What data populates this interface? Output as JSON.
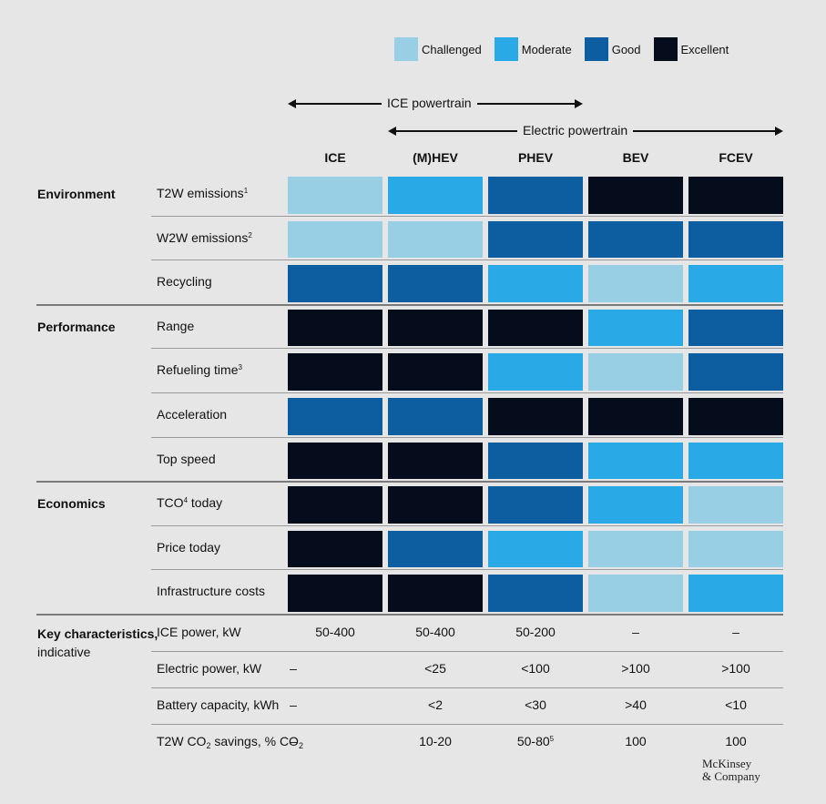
{
  "colors": {
    "Challenged": "#99cfe4",
    "Moderate": "#29a9e5",
    "Good": "#0c5ea1",
    "Excellent": "#050d1c"
  },
  "legend": [
    {
      "label": "Challenged",
      "color": "#99cfe4"
    },
    {
      "label": "Moderate",
      "color": "#29a9e5"
    },
    {
      "label": "Good",
      "color": "#0c5ea1"
    },
    {
      "label": "Excellent",
      "color": "#050d1c"
    }
  ],
  "powertrain_groups": {
    "ice": "ICE powertrain",
    "electric": "Electric powertrain"
  },
  "logo": {
    "line1": "McKinsey",
    "line2": "& Company"
  },
  "chart_data": {
    "type": "heatmap",
    "columns": [
      "ICE",
      "(M)HEV",
      "PHEV",
      "BEV",
      "FCEV"
    ],
    "categories": [
      {
        "name": "Environment",
        "rows": [
          {
            "label": "T2W emissions",
            "note": "1",
            "ratings": [
              "Challenged",
              "Moderate",
              "Good",
              "Excellent",
              "Excellent"
            ]
          },
          {
            "label": "W2W emissions",
            "note": "2",
            "ratings": [
              "Challenged",
              "Challenged",
              "Good",
              "Good",
              "Good"
            ]
          },
          {
            "label": "Recycling",
            "note": "",
            "ratings": [
              "Good",
              "Good",
              "Moderate",
              "Challenged",
              "Moderate"
            ]
          }
        ]
      },
      {
        "name": "Performance",
        "rows": [
          {
            "label": "Range",
            "note": "",
            "ratings": [
              "Excellent",
              "Excellent",
              "Excellent",
              "Moderate",
              "Good"
            ]
          },
          {
            "label": "Refueling time",
            "note": "3",
            "ratings": [
              "Excellent",
              "Excellent",
              "Moderate",
              "Challenged",
              "Good"
            ]
          },
          {
            "label": "Acceleration",
            "note": "",
            "ratings": [
              "Good",
              "Good",
              "Excellent",
              "Excellent",
              "Excellent"
            ]
          },
          {
            "label": "Top speed",
            "note": "",
            "ratings": [
              "Excellent",
              "Excellent",
              "Good",
              "Moderate",
              "Moderate"
            ]
          }
        ]
      },
      {
        "name": "Economics",
        "rows": [
          {
            "label": "TCO",
            "note": "4",
            "label_suffix": " today",
            "ratings": [
              "Excellent",
              "Excellent",
              "Good",
              "Moderate",
              "Challenged"
            ]
          },
          {
            "label": "Price today",
            "note": "",
            "ratings": [
              "Excellent",
              "Good",
              "Moderate",
              "Challenged",
              "Challenged"
            ]
          },
          {
            "label": "Infrastructure costs",
            "note": "",
            "ratings": [
              "Excellent",
              "Excellent",
              "Good",
              "Challenged",
              "Moderate"
            ]
          }
        ]
      }
    ],
    "key_characteristics": {
      "title": "Key characteristics,",
      "subtitle": "indicative",
      "rows": [
        {
          "label": "ICE power, kW",
          "values": [
            "50-400",
            "50-400",
            "50-200",
            "–",
            "–"
          ]
        },
        {
          "label": "Electric power, kW",
          "values": [
            "–",
            "<25",
            "<100",
            ">100",
            ">100"
          ]
        },
        {
          "label": "Battery capacity, kWh",
          "values": [
            "–",
            "<2",
            "<30",
            ">40",
            "<10"
          ]
        },
        {
          "label_parts": [
            "T2W CO",
            "2",
            " savings, % CO",
            "2"
          ],
          "values": [
            "–",
            "10-20",
            "50-80",
            "100",
            "100"
          ],
          "value_notes": [
            "",
            "",
            "5",
            "",
            ""
          ]
        }
      ]
    }
  }
}
